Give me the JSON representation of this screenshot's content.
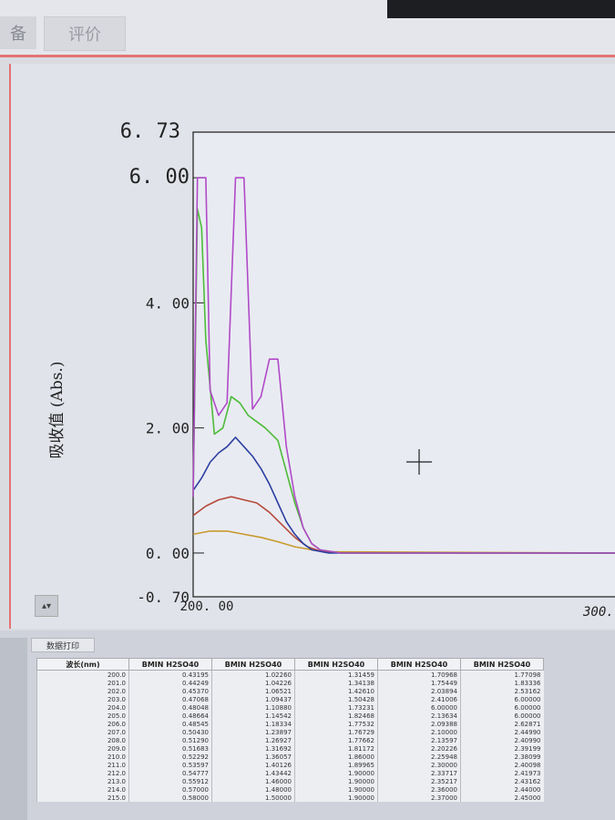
{
  "toolbar": {
    "left_button_label": "备",
    "button_label": "评价"
  },
  "chart": {
    "y_axis_label": "吸收值 (Abs.)",
    "y_ticks": [
      "6. 73",
      "6. 00",
      "4. 00",
      "2. 00",
      "0. 00",
      "-0. 70"
    ],
    "x_ticks": [
      "200. 00",
      "300."
    ],
    "colors": {
      "magenta": "#b04ac8",
      "green": "#4dbb3a",
      "blue": "#2b3ea0",
      "red": "#b64a3a",
      "orange": "#c89a2e"
    }
  },
  "chart_data": {
    "type": "line",
    "xlabel": "",
    "ylabel": "吸收值 (Abs.)",
    "xlim": [
      200,
      300
    ],
    "ylim": [
      -0.7,
      6.73
    ],
    "series": [
      {
        "color": "#b04ac8",
        "x": [
          200,
          201,
          202,
          203,
          204,
          206,
          208,
          210,
          212,
          214,
          216,
          218,
          220,
          222,
          224,
          226,
          228,
          230,
          235,
          240,
          300
        ],
        "y": [
          0.9,
          6.0,
          6.0,
          6.0,
          2.6,
          2.2,
          2.4,
          6.0,
          6.0,
          2.3,
          2.5,
          3.1,
          3.1,
          1.7,
          0.9,
          0.4,
          0.15,
          0.05,
          0.0,
          0.0,
          0.0
        ]
      },
      {
        "color": "#4dbb3a",
        "x": [
          200,
          201,
          202,
          203,
          205,
          207,
          209,
          211,
          213,
          215,
          217,
          220,
          222,
          224,
          226,
          228,
          230,
          235,
          240,
          300
        ],
        "y": [
          0.9,
          5.5,
          5.2,
          3.4,
          1.9,
          2.0,
          2.5,
          2.4,
          2.2,
          2.1,
          2.0,
          1.8,
          1.3,
          0.8,
          0.4,
          0.15,
          0.05,
          0.0,
          0.0,
          0.0
        ]
      },
      {
        "color": "#2b3ea0",
        "x": [
          200,
          202,
          204,
          206,
          208,
          210,
          212,
          214,
          216,
          218,
          220,
          222,
          224,
          226,
          228,
          232,
          240,
          300
        ],
        "y": [
          1.0,
          1.2,
          1.45,
          1.6,
          1.7,
          1.85,
          1.7,
          1.55,
          1.35,
          1.1,
          0.8,
          0.5,
          0.3,
          0.15,
          0.05,
          0.0,
          0.0,
          0.0
        ]
      },
      {
        "color": "#b64a3a",
        "x": [
          200,
          203,
          206,
          209,
          212,
          215,
          218,
          221,
          224,
          227,
          230,
          235,
          300
        ],
        "y": [
          0.6,
          0.75,
          0.85,
          0.9,
          0.85,
          0.8,
          0.65,
          0.45,
          0.25,
          0.1,
          0.03,
          0.0,
          0.0
        ]
      },
      {
        "color": "#c89a2e",
        "x": [
          200,
          204,
          208,
          212,
          216,
          220,
          224,
          228,
          232,
          300
        ],
        "y": [
          0.3,
          0.35,
          0.35,
          0.3,
          0.25,
          0.18,
          0.1,
          0.05,
          0.02,
          0.0
        ]
      }
    ]
  },
  "table": {
    "tab_label": "数据打印",
    "headers": [
      "波长(nm)",
      "BMIN H2SO40",
      "BMIN H2SO40",
      "BMIN H2SO40",
      "BMIN H2SO40",
      "BMIN H2SO40"
    ],
    "rows": [
      [
        "200.0",
        "0.43195",
        "1.02260",
        "1.31459",
        "1.70968",
        "1.77098"
      ],
      [
        "201.0",
        "0.44249",
        "1.04226",
        "1.34138",
        "1.75449",
        "1.83336"
      ],
      [
        "202.0",
        "0.45370",
        "1.06521",
        "1.42610",
        "2.03894",
        "2.53162"
      ],
      [
        "203.0",
        "0.47068",
        "1.09437",
        "1.50428",
        "2.41006",
        "6.00000"
      ],
      [
        "204.0",
        "0.48048",
        "1.10880",
        "1.73231",
        "6.00000",
        "6.00000"
      ],
      [
        "205.0",
        "0.48664",
        "1.14542",
        "1.82468",
        "2.13634",
        "6.00000"
      ],
      [
        "206.0",
        "0.48545",
        "1.18334",
        "1.77532",
        "2.09388",
        "2.62871"
      ],
      [
        "207.0",
        "0.50430",
        "1.23897",
        "1.76729",
        "2.10000",
        "2.44990"
      ],
      [
        "208.0",
        "0.51290",
        "1.26927",
        "1.77662",
        "2.13597",
        "2.40990"
      ],
      [
        "209.0",
        "0.51683",
        "1.31692",
        "1.81172",
        "2.20226",
        "2.39199"
      ],
      [
        "210.0",
        "0.52292",
        "1.36057",
        "1.86000",
        "2.25948",
        "2.38099"
      ],
      [
        "211.0",
        "0.53597",
        "1.40126",
        "1.89965",
        "2.30000",
        "2.40098"
      ],
      [
        "212.0",
        "0.54777",
        "1.43442",
        "1.90000",
        "2.33717",
        "2.41973"
      ],
      [
        "213.0",
        "0.55912",
        "1.46000",
        "1.90000",
        "2.35217",
        "2.43162"
      ],
      [
        "214.0",
        "0.57000",
        "1.48000",
        "1.90000",
        "2.36000",
        "2.44000"
      ],
      [
        "215.0",
        "0.58000",
        "1.50000",
        "1.90000",
        "2.37000",
        "2.45000"
      ]
    ]
  }
}
